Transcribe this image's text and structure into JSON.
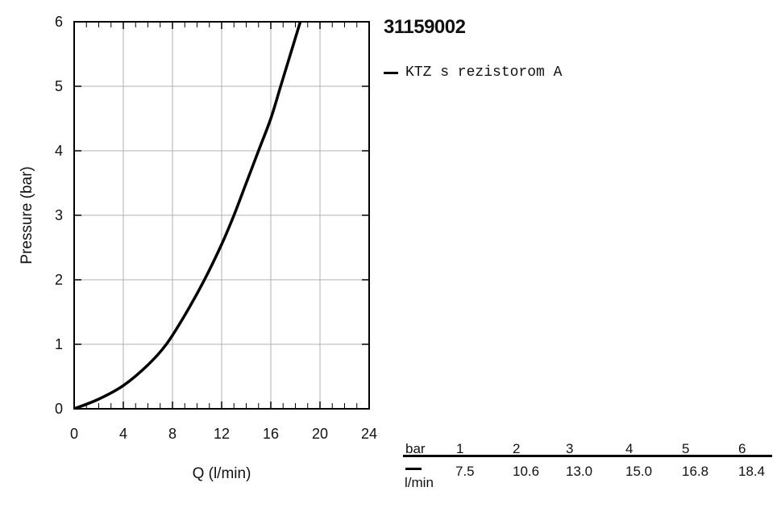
{
  "chart_data": {
    "type": "line",
    "title": "31159002",
    "xlabel": "Q (l/min)",
    "ylabel": "Pressure (bar)",
    "xlim": [
      0,
      24
    ],
    "ylim": [
      0,
      6
    ],
    "x_ticks": [
      "0",
      "4",
      "8",
      "12",
      "16",
      "20",
      "24"
    ],
    "y_ticks": [
      "0",
      "1",
      "2",
      "3",
      "4",
      "5",
      "6"
    ],
    "grid": true,
    "legend_position": "top-right outside",
    "series": [
      {
        "name": "KTZ s rezistorom A",
        "color": "#000000",
        "x": [
          0,
          2,
          4,
          6,
          7.5,
          9,
          10.6,
          12,
          13.0,
          14,
          15.0,
          16,
          16.8,
          17.6,
          18.4
        ],
        "y": [
          0,
          0.15,
          0.36,
          0.68,
          1.0,
          1.45,
          2.0,
          2.55,
          3.0,
          3.5,
          4.0,
          4.5,
          5.0,
          5.5,
          6.0
        ]
      }
    ],
    "table": {
      "row1_label": "bar",
      "row2_label": "l/min",
      "bar": [
        "1",
        "2",
        "3",
        "4",
        "5",
        "6"
      ],
      "flow": [
        "7.5",
        "10.6",
        "13.0",
        "15.0",
        "16.8",
        "18.4"
      ]
    }
  }
}
